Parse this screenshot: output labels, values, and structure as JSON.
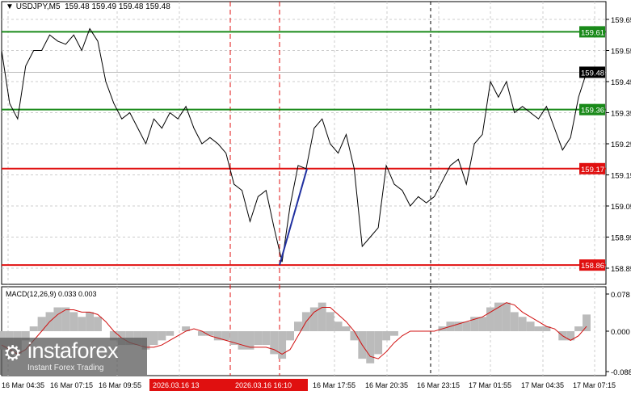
{
  "header": {
    "symbol": "USDJPY,M5",
    "ohlc": "159.48 159.49 159.48 159.48",
    "menu_icon": "triangle-down-icon"
  },
  "price_axis": {
    "ticks": [
      "159.65",
      "159.55",
      "159.45",
      "159.35",
      "159.25",
      "159.15",
      "159.05",
      "158.95",
      "158.85"
    ],
    "range": [
      158.83,
      159.7
    ]
  },
  "levels": [
    {
      "price": 159.61,
      "label": "159.61",
      "color": "#1a8a1a"
    },
    {
      "price": 159.36,
      "label": "159.36",
      "color": "#1a8a1a"
    },
    {
      "price": 159.17,
      "label": "159.17",
      "color": "#e01010"
    },
    {
      "price": 158.86,
      "label": "158.86",
      "color": "#e01010"
    }
  ],
  "current_price": {
    "price": 159.48,
    "label": "159.48"
  },
  "price_series": [
    159.55,
    159.38,
    159.33,
    159.5,
    159.55,
    159.55,
    159.6,
    159.58,
    159.57,
    159.6,
    159.55,
    159.62,
    159.58,
    159.45,
    159.38,
    159.33,
    159.35,
    159.3,
    159.25,
    159.33,
    159.3,
    159.35,
    159.33,
    159.37,
    159.3,
    159.25,
    159.27,
    159.25,
    159.22,
    159.12,
    159.1,
    159.0,
    159.08,
    159.1,
    158.98,
    158.87,
    159.05,
    159.18,
    159.17,
    159.3,
    159.33,
    159.25,
    159.22,
    159.28,
    159.17,
    158.92,
    158.95,
    158.98,
    159.18,
    159.12,
    159.1,
    159.05,
    159.08,
    159.06,
    159.08,
    159.13,
    159.18,
    159.2,
    159.12,
    159.25,
    159.28,
    159.45,
    159.4,
    159.45,
    159.35,
    159.37,
    159.35,
    159.33,
    159.37,
    159.3,
    159.23,
    159.27,
    159.4,
    159.48
  ],
  "trend_line": {
    "from": 158.86,
    "to": 159.17,
    "color": "#2030a0"
  },
  "macd": {
    "title": "MACD(12,26,9) 0.033 0.003",
    "ticks": [
      "0.078",
      "0.000",
      "-0.088"
    ],
    "range": [
      -0.095,
      0.09
    ],
    "histogram": [
      -0.04,
      -0.06,
      -0.05,
      -0.02,
      0.01,
      0.03,
      0.04,
      0.05,
      0.05,
      0.04,
      0.03,
      0.04,
      0.03,
      0.0,
      -0.02,
      -0.03,
      -0.03,
      -0.03,
      -0.04,
      -0.03,
      -0.02,
      -0.01,
      0.0,
      0.01,
      0.0,
      -0.01,
      -0.01,
      -0.02,
      -0.02,
      -0.03,
      -0.04,
      -0.04,
      -0.03,
      -0.03,
      -0.05,
      -0.06,
      -0.02,
      0.02,
      0.04,
      0.05,
      0.06,
      0.04,
      0.02,
      0.01,
      -0.02,
      -0.06,
      -0.07,
      -0.05,
      -0.02,
      -0.01,
      0.0,
      0.0,
      0.0,
      0.0,
      0.0,
      0.01,
      0.02,
      0.02,
      0.02,
      0.03,
      0.03,
      0.05,
      0.06,
      0.06,
      0.04,
      0.03,
      0.02,
      0.01,
      0.01,
      0.0,
      -0.02,
      -0.02,
      0.01,
      0.035
    ],
    "signal": [
      -0.03,
      -0.04,
      -0.05,
      -0.04,
      -0.02,
      0.0,
      0.02,
      0.035,
      0.045,
      0.045,
      0.04,
      0.04,
      0.035,
      0.02,
      0.0,
      -0.015,
      -0.025,
      -0.03,
      -0.035,
      -0.035,
      -0.03,
      -0.02,
      -0.01,
      0.0,
      0.005,
      0.0,
      -0.01,
      -0.015,
      -0.02,
      -0.025,
      -0.03,
      -0.035,
      -0.035,
      -0.035,
      -0.04,
      -0.05,
      -0.04,
      -0.01,
      0.02,
      0.04,
      0.05,
      0.05,
      0.035,
      0.02,
      0.0,
      -0.03,
      -0.055,
      -0.06,
      -0.045,
      -0.025,
      -0.01,
      0.0,
      0.0,
      0.0,
      0.0,
      0.005,
      0.01,
      0.015,
      0.02,
      0.025,
      0.03,
      0.04,
      0.05,
      0.06,
      0.055,
      0.04,
      0.03,
      0.02,
      0.01,
      0.005,
      -0.01,
      -0.02,
      -0.01,
      0.01
    ]
  },
  "time_axis": {
    "labels": [
      "16 Mar 04:35",
      "16 Mar 07:15",
      "16 Mar 09:55",
      "16 Mar 17:55",
      "16 Mar 20:35",
      "16 Mar 23:15",
      "17 Mar 01:55",
      "17 Mar 04:35",
      "17 Mar 07:15"
    ],
    "markers": [
      "2026.03.16 13",
      "2026.03.16 16:10"
    ]
  },
  "watermark": {
    "brand": "instaforex",
    "tagline": "Instant Forex Trading"
  }
}
